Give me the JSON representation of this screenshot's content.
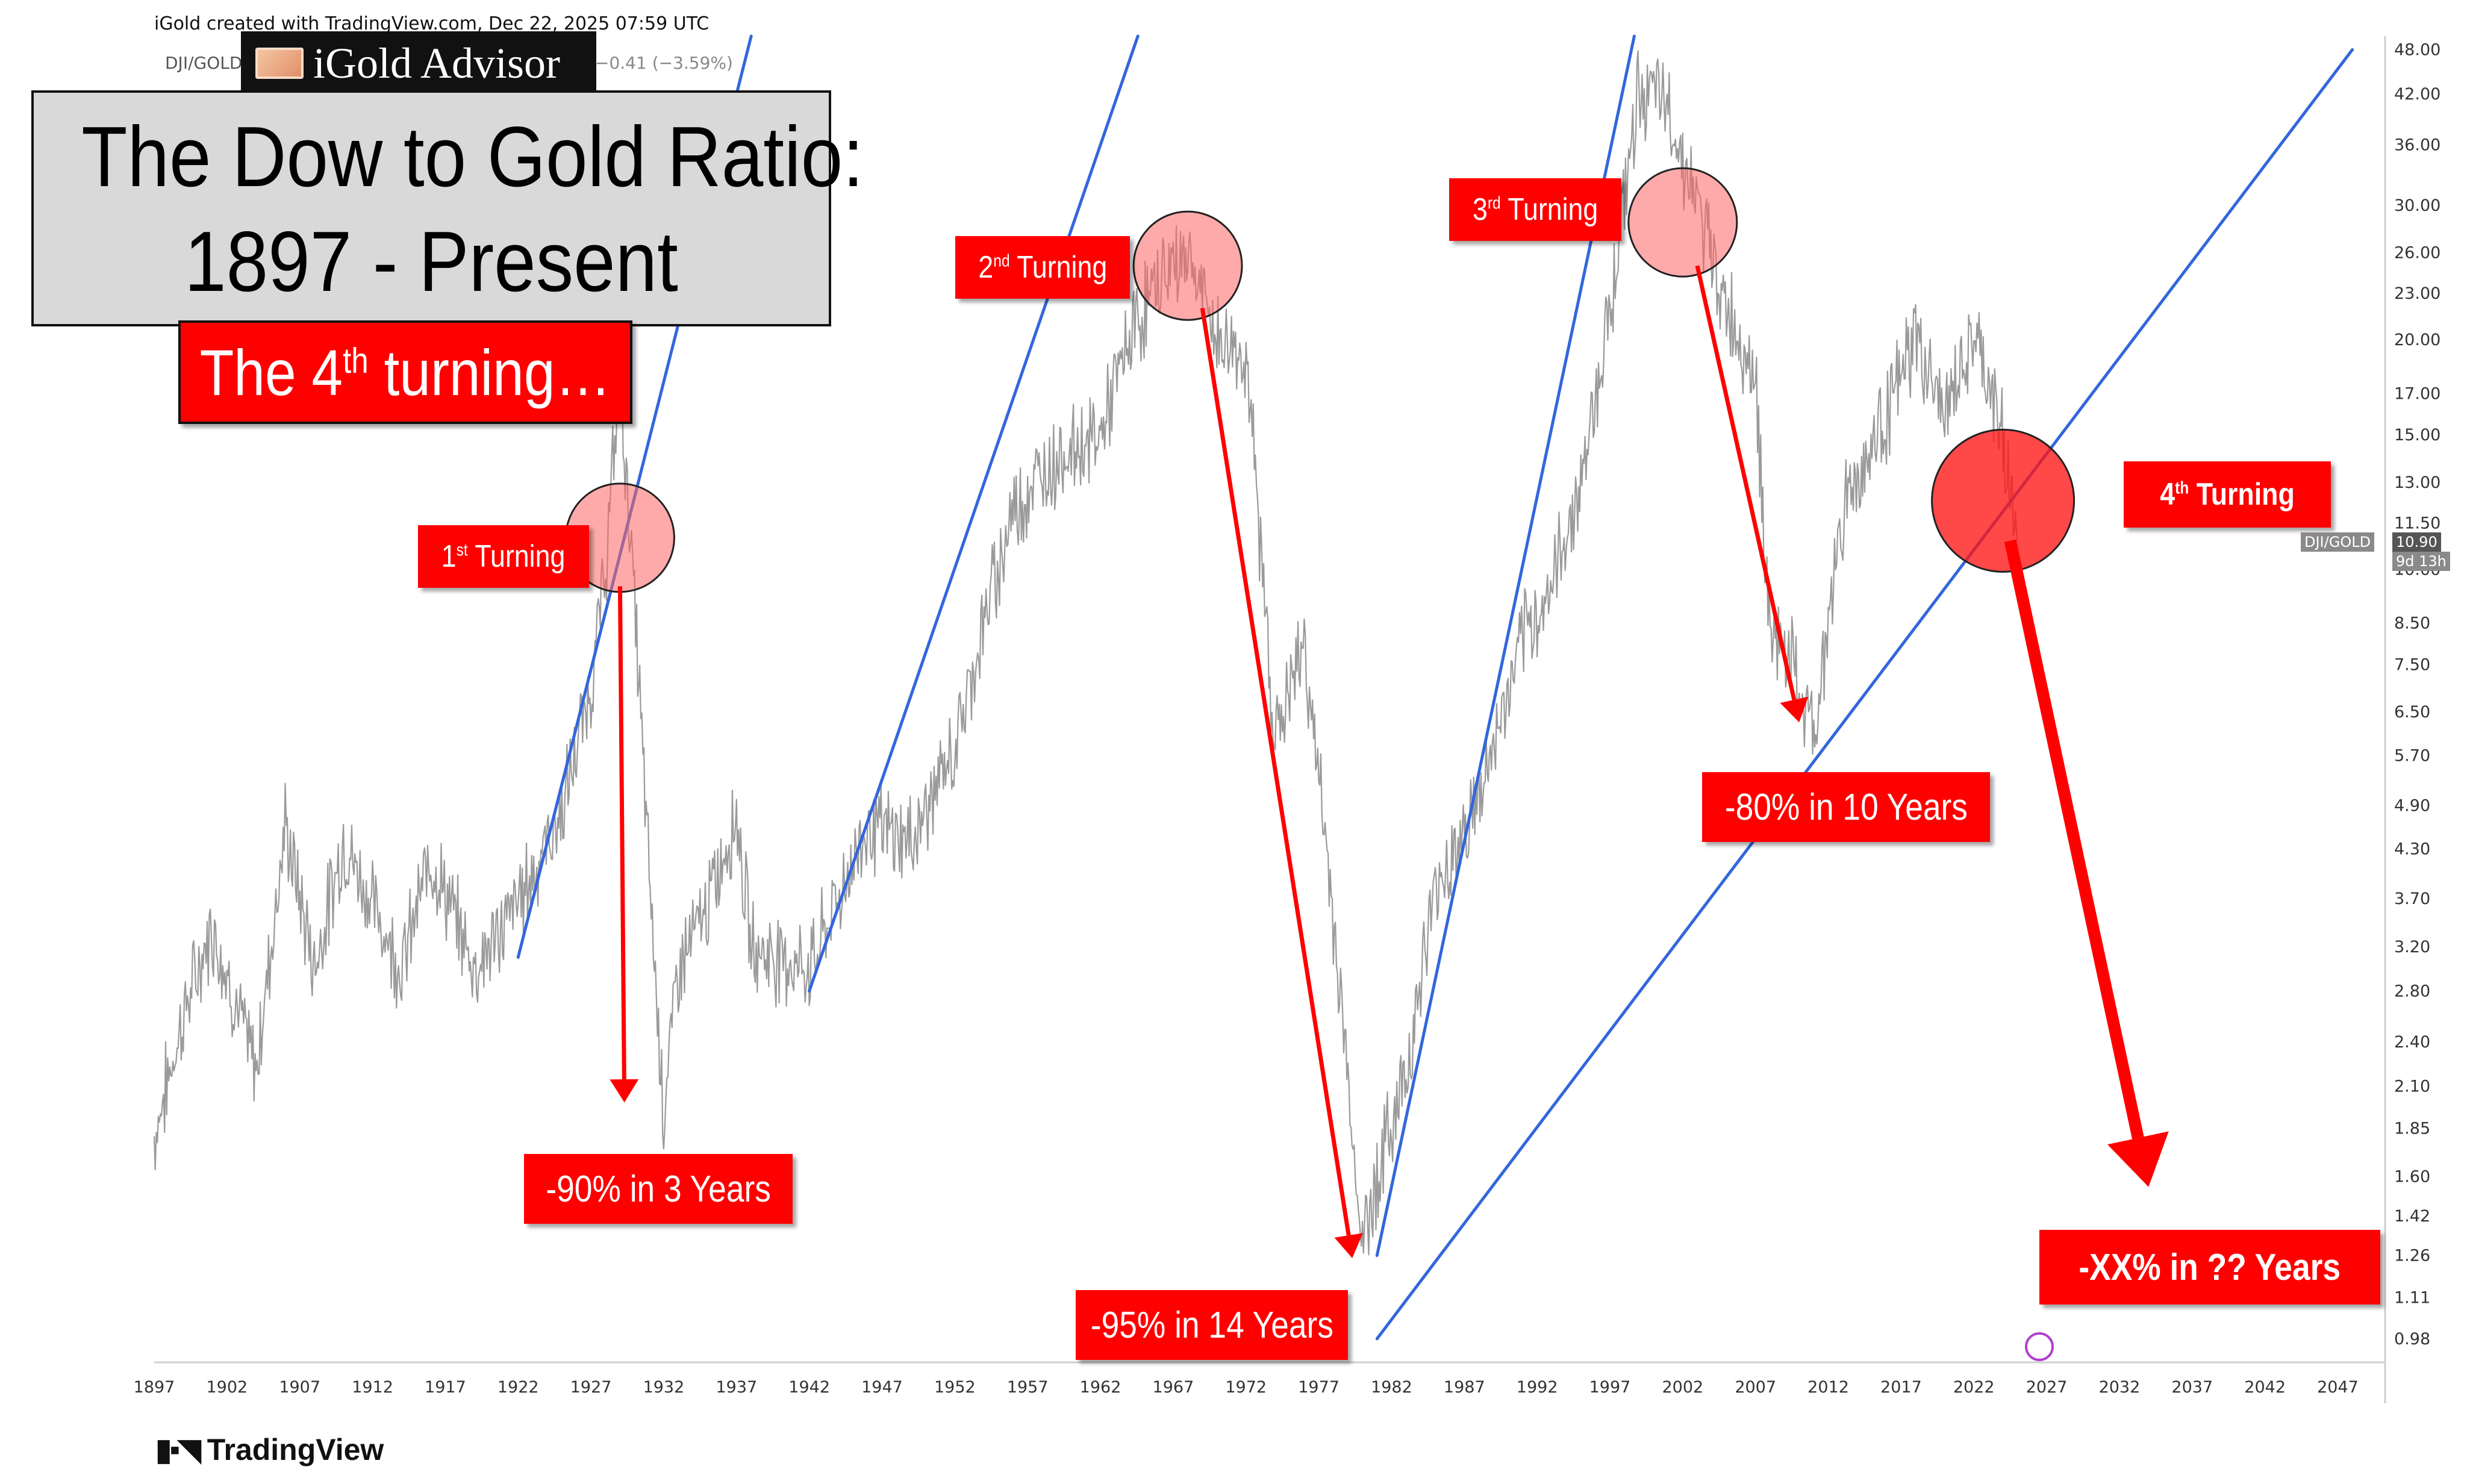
{
  "header": {
    "credit": "iGold created with TradingView.com, Dec 22, 2025 07:59 UTC",
    "ticker": "DJI/GOLD",
    "change": "−0.41 (−3.59%)",
    "brand": "iGold Advisor"
  },
  "title": {
    "line1": "The Dow to Gold Ratio:",
    "line2": "1897 - Present",
    "subtitle_pre": "The 4",
    "subtitle_sup": "th",
    "subtitle_post": " turning…"
  },
  "annotations": {
    "t1": {
      "num": "1",
      "sup": "st",
      "text": " Turning"
    },
    "t2": {
      "num": "2",
      "sup": "nd",
      "text": " Turning"
    },
    "t3": {
      "num": "3",
      "sup": "rd",
      "text": " Turning"
    },
    "t4": {
      "num": "4",
      "sup": "th",
      "text": " Turning"
    },
    "d1": "-90% in 3 Years",
    "d2": "-95% in 14 Years",
    "d3": "-80% in 10 Years",
    "d4": "-XX% in ?? Years"
  },
  "price_tag": {
    "symbol": "DJI/GOLD",
    "value": "10.90",
    "countdown": "9d 13h"
  },
  "footer": {
    "brand": "TradingView"
  },
  "colors": {
    "series": "#9a9a9a",
    "trend": "#3366dd",
    "accent": "#ff0000"
  },
  "chart_data": {
    "type": "line",
    "scale": "log",
    "xlim": [
      1897,
      2050
    ],
    "ylim": [
      0.95,
      50
    ],
    "x_ticks": [
      1897,
      1902,
      1907,
      1912,
      1917,
      1922,
      1927,
      1932,
      1937,
      1942,
      1947,
      1952,
      1957,
      1962,
      1967,
      1972,
      1977,
      1982,
      1987,
      1992,
      1997,
      2002,
      2007,
      2012,
      2017,
      2022,
      2027,
      2032,
      2037,
      2042,
      2047
    ],
    "y_ticks": [
      "48.00",
      "42.00",
      "36.00",
      "30.00",
      "26.00",
      "23.00",
      "20.00",
      "17.00",
      "15.00",
      "13.00",
      "11.50",
      "10.00",
      "8.50",
      "7.50",
      "6.50",
      "5.70",
      "4.90",
      "4.30",
      "3.70",
      "3.20",
      "2.80",
      "2.40",
      "2.10",
      "1.85",
      "1.60",
      "1.42",
      "1.26",
      "1.11",
      "0.98"
    ],
    "series": [
      {
        "x": [
          1897,
          1899,
          1901,
          1904,
          1906,
          1908,
          1910,
          1914,
          1916,
          1919,
          1921,
          1923,
          1925,
          1927,
          1928,
          1929,
          1930,
          1931,
          1932,
          1933,
          1935,
          1937,
          1938,
          1942,
          1946,
          1949,
          1952,
          1954,
          1956,
          1959,
          1962,
          1964,
          1966,
          1968,
          1970,
          1972,
          1974,
          1976,
          1978,
          1980,
          1981,
          1983,
          1985,
          1988,
          1991,
          1993,
          1995,
          1997,
          1999,
          2001,
          2003,
          2005,
          2007,
          2008,
          2009,
          2011,
          2013,
          2016,
          2018,
          2020,
          2022,
          2024,
          2025
        ],
        "values": [
          1.8,
          2.6,
          3.4,
          2.2,
          4.6,
          3.0,
          4.4,
          3.0,
          4.2,
          3.0,
          3.4,
          4.0,
          4.8,
          7.0,
          10.0,
          18.0,
          9.0,
          4.0,
          1.95,
          3.0,
          3.6,
          4.8,
          3.2,
          3.0,
          4.6,
          4.4,
          5.8,
          8.5,
          12.0,
          14.0,
          15.0,
          20.0,
          24.0,
          26.0,
          20.0,
          19.0,
          6.0,
          8.0,
          3.5,
          1.3,
          1.6,
          2.2,
          3.8,
          5.0,
          8.0,
          9.5,
          13.0,
          22.0,
          43.0,
          40.0,
          30.0,
          22.0,
          18.0,
          8.0,
          8.0,
          6.0,
          12.0,
          16.0,
          20.0,
          16.0,
          20.0,
          15.0,
          10.9
        ]
      }
    ],
    "trendlines": [
      {
        "x": [
          1922,
          1942
        ],
        "values": [
          3.1,
          100
        ]
      },
      {
        "x": [
          1942,
          1970
        ],
        "values": [
          2.8,
          100
        ]
      },
      {
        "x": [
          1981,
          2002
        ],
        "values": [
          1.26,
          100
        ]
      },
      {
        "x": [
          1981,
          2048
        ],
        "values": [
          0.98,
          48.0
        ]
      }
    ],
    "turnings": [
      {
        "x": 1929,
        "value": 11.0
      },
      {
        "x": 1968,
        "value": 25.0
      },
      {
        "x": 2002,
        "value": 28.5
      },
      {
        "x": 2024,
        "value": 12.3
      }
    ],
    "drops": [
      {
        "from": [
          1929,
          9.5
        ],
        "to": [
          1929.3,
          2.0
        ]
      },
      {
        "from": [
          1969,
          22.0
        ],
        "to": [
          1979.3,
          1.25
        ]
      },
      {
        "from": [
          2003,
          25.0
        ],
        "to": [
          2010,
          6.3
        ]
      },
      {
        "from": [
          2024.5,
          10.9
        ],
        "to": [
          2034,
          1.55
        ]
      }
    ]
  }
}
